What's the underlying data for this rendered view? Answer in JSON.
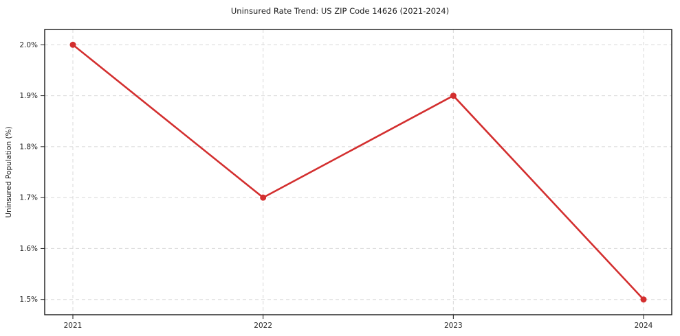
{
  "chart_data": {
    "type": "line",
    "title": "Uninsured Rate Trend: US ZIP Code 14626 (2021-2024)",
    "xlabel": "",
    "ylabel": "Uninsured Population (%)",
    "categories": [
      "2021",
      "2022",
      "2023",
      "2024"
    ],
    "series": [
      {
        "name": "Uninsured rate",
        "values": [
          2.0,
          1.7,
          1.9,
          1.5
        ],
        "color": "#d32f2f",
        "marker": "circle"
      }
    ],
    "yticks": [
      1.5,
      1.6,
      1.7,
      1.8,
      1.9,
      2.0
    ],
    "ytick_labels": [
      "1.5%",
      "1.6%",
      "1.7%",
      "1.8%",
      "1.9%",
      "2.0%"
    ],
    "ylim": [
      1.47,
      2.03
    ],
    "grid": "dashed-both-axes",
    "grid_color": "#d8d8d8",
    "legend": "none",
    "background_color": "#ffffff"
  }
}
